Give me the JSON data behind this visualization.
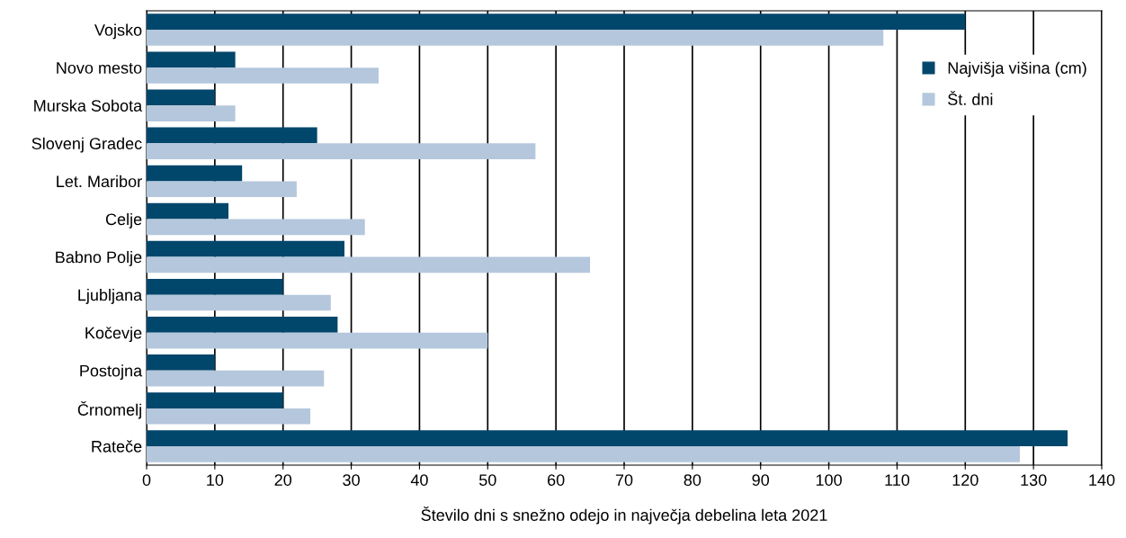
{
  "chart_data": {
    "type": "bar",
    "orientation": "horizontal",
    "xlabel": "Število dni s snežno odejo in največja debelina leta 2021",
    "categories": [
      "Vojsko",
      "Novo mesto",
      "Murska Sobota",
      "Slovenj Gradec",
      "Let. Maribor",
      "Celje",
      "Babno Polje",
      "Ljubljana",
      "Kočevje",
      "Postojna",
      "Črnomelj",
      "Rateče"
    ],
    "series": [
      {
        "name": "Najvišja višina (cm)",
        "color": "#01466b",
        "values": [
          120,
          13,
          10,
          25,
          14,
          12,
          29,
          20,
          28,
          10,
          20,
          135
        ]
      },
      {
        "name": "Št. dni",
        "color": "#b4c7dc",
        "values": [
          108,
          34,
          13,
          57,
          22,
          32,
          65,
          27,
          50,
          26,
          24,
          128
        ]
      }
    ],
    "xlim": [
      0,
      140
    ],
    "xticks": [
      0,
      10,
      20,
      30,
      40,
      50,
      60,
      70,
      80,
      90,
      100,
      110,
      120,
      130,
      140
    ],
    "grid": "x",
    "legend": "top right"
  }
}
